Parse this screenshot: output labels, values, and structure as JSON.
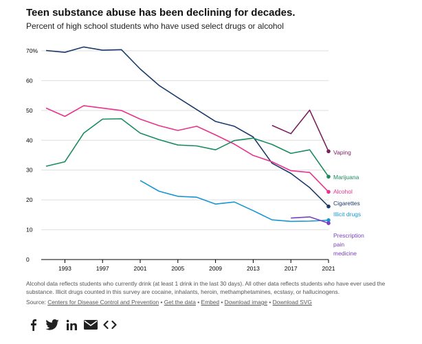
{
  "header": {
    "title": "Teen substance abuse has been declining for decades.",
    "subtitle": "Percent of high school students who have used select drugs or alcohol"
  },
  "chart_data": {
    "type": "line",
    "title": "Teen substance abuse has been declining for decades.",
    "subtitle": "Percent of high school students who have used select drugs or alcohol",
    "xlabel": "",
    "ylabel": "",
    "xlim": [
      1991,
      2021
    ],
    "ylim": [
      0,
      70
    ],
    "x_ticks": [
      1993,
      1997,
      2001,
      2005,
      2009,
      2013,
      2017,
      2021
    ],
    "y_ticks": [
      0,
      10,
      20,
      30,
      40,
      50,
      60,
      70
    ],
    "y_tick_labels": [
      "0",
      "10",
      "20",
      "30",
      "40",
      "50",
      "60",
      "70%"
    ],
    "grid": "horizontal",
    "series": [
      {
        "name": "Cigarettes",
        "color": "#1b3a6b",
        "x": [
          1991,
          1993,
          1995,
          1997,
          1999,
          2001,
          2003,
          2005,
          2007,
          2009,
          2011,
          2013,
          2015,
          2017,
          2019,
          2021
        ],
        "y": [
          70.1,
          69.5,
          71.3,
          70.2,
          70.4,
          63.9,
          58.4,
          54.3,
          50.3,
          46.3,
          44.7,
          41.1,
          32.3,
          28.9,
          24.1,
          17.8
        ]
      },
      {
        "name": "Alcohol",
        "color": "#e8328c",
        "x": [
          1991,
          1993,
          1995,
          1997,
          1999,
          2001,
          2003,
          2005,
          2007,
          2009,
          2011,
          2013,
          2015,
          2017,
          2019,
          2021
        ],
        "y": [
          50.8,
          48.0,
          51.6,
          50.8,
          50.0,
          47.1,
          44.9,
          43.3,
          44.7,
          41.8,
          38.7,
          34.9,
          32.8,
          29.8,
          29.2,
          22.7
        ]
      },
      {
        "name": "Marijuana",
        "color": "#188c5e",
        "x": [
          1991,
          1993,
          1995,
          1997,
          1999,
          2001,
          2003,
          2005,
          2007,
          2009,
          2011,
          2013,
          2015,
          2017,
          2019,
          2021
        ],
        "y": [
          31.3,
          32.8,
          42.4,
          47.1,
          47.2,
          42.4,
          40.2,
          38.4,
          38.1,
          36.8,
          39.9,
          40.7,
          38.6,
          35.6,
          36.8,
          27.8
        ]
      },
      {
        "name": "Illicit drugs",
        "color": "#1696d2",
        "x": [
          2001,
          2003,
          2005,
          2007,
          2009,
          2011,
          2013,
          2015,
          2017,
          2019,
          2021
        ],
        "y": [
          26.5,
          22.9,
          21.2,
          20.9,
          18.6,
          19.3,
          16.4,
          13.3,
          12.8,
          12.9,
          13.2
        ]
      },
      {
        "name": "Vaping",
        "color": "#7b1f5e",
        "x": [
          2015,
          2017,
          2019,
          2021
        ],
        "y": [
          45.0,
          42.2,
          50.1,
          36.3
        ]
      },
      {
        "name": "Prescription pain medicine",
        "color": "#7a3fbf",
        "x": [
          2017,
          2019,
          2021
        ],
        "y": [
          13.9,
          14.3,
          12.2
        ]
      }
    ],
    "legend": [
      {
        "label": "Vaping",
        "color": "#7b1f5e"
      },
      {
        "label": "Marijuana",
        "color": "#188c5e"
      },
      {
        "label": "Alcohol",
        "color": "#e8328c"
      },
      {
        "label": "Cigarettes",
        "color": "#1b3a6b"
      },
      {
        "label": "Illicit drugs",
        "color": "#1696d2"
      },
      {
        "label": "Prescription pain medicine",
        "color": "#7a3fbf",
        "lines": [
          "Prescription",
          "pain",
          "medicine"
        ]
      }
    ],
    "legend_placement": "right, at line ends"
  },
  "notes": "Alcohol data reflects students who currently drink (at least 1 drink in the last 30 days). All other data reflects students who have ever used the substance. Illicit drugs counted in this survey are cocaine, inhalants, heroin, methamphetamines, ecstasy, or hallucinogens.",
  "source": {
    "prefix": "Source: ",
    "org": "Centers for Disease Control and Prevention",
    "separator": " • ",
    "links": [
      "Get the data",
      "Embed",
      "Download image",
      "Download SVG"
    ]
  },
  "share": [
    {
      "icon": "facebook-icon"
    },
    {
      "icon": "twitter-icon"
    },
    {
      "icon": "linkedin-icon"
    },
    {
      "icon": "email-icon"
    },
    {
      "icon": "embed-code-icon"
    }
  ]
}
